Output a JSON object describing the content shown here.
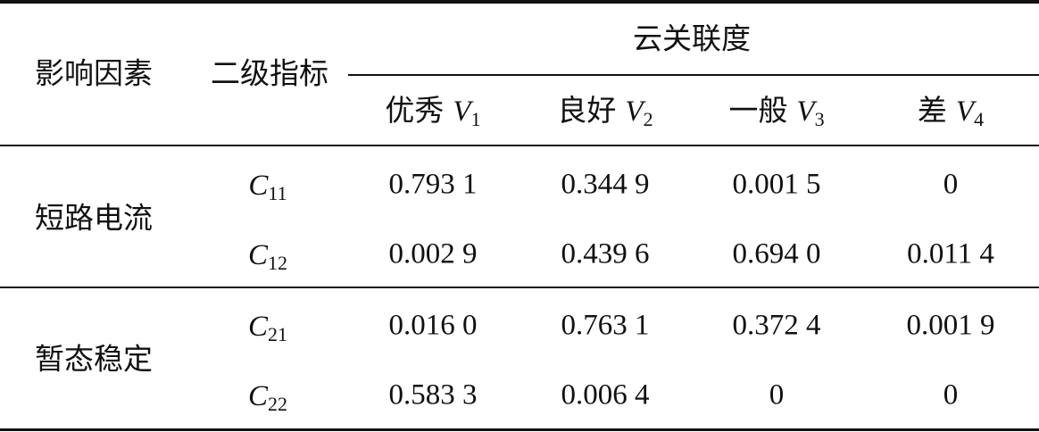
{
  "table": {
    "header": {
      "factor": "影响因素",
      "indicator": "二级指标",
      "group": "云关联度",
      "columns": [
        {
          "label": "优秀",
          "var": "V",
          "sub": "1"
        },
        {
          "label": "良好",
          "var": "V",
          "sub": "2"
        },
        {
          "label": "一般",
          "var": "V",
          "sub": "3"
        },
        {
          "label": "差",
          "var": "V",
          "sub": "4"
        }
      ]
    },
    "groups": [
      {
        "factor": "短路电流",
        "rows": [
          {
            "var": "C",
            "sub": "11",
            "values": [
              "0.793 1",
              "0.344 9",
              "0.001 5",
              "0"
            ]
          },
          {
            "var": "C",
            "sub": "12",
            "values": [
              "0.002 9",
              "0.439 6",
              "0.694 0",
              "0.011 4"
            ]
          }
        ]
      },
      {
        "factor": "暂态稳定",
        "rows": [
          {
            "var": "C",
            "sub": "21",
            "values": [
              "0.016 0",
              "0.763 1",
              "0.372 4",
              "0.001 9"
            ]
          },
          {
            "var": "C",
            "sub": "22",
            "values": [
              "0.583 3",
              "0.006 4",
              "0",
              "0"
            ]
          }
        ]
      }
    ]
  }
}
